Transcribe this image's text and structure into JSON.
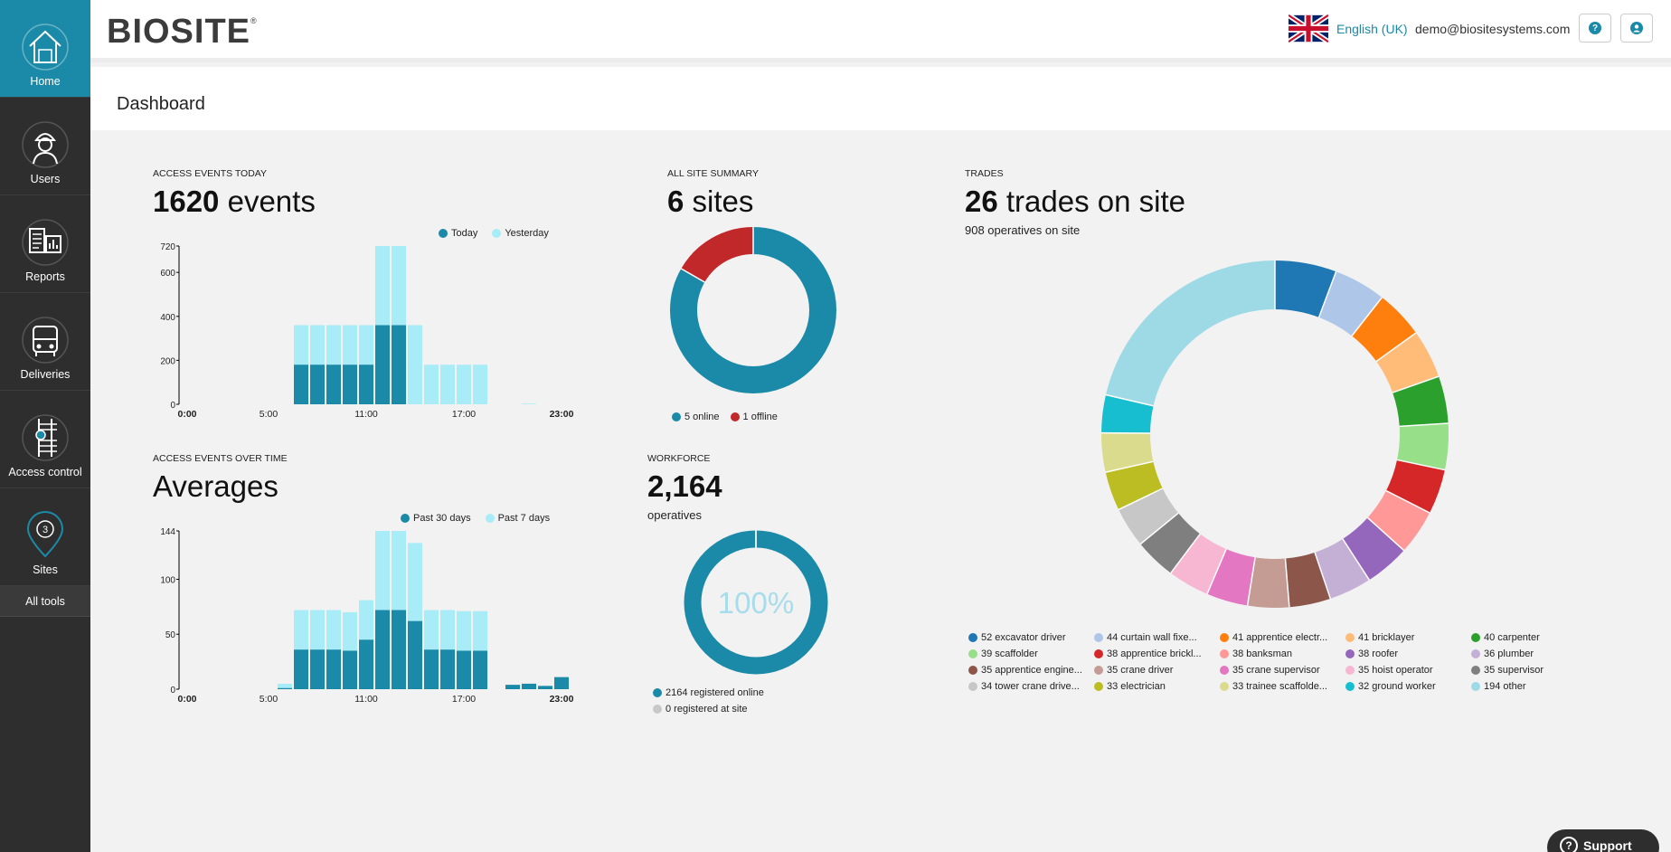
{
  "sidebar": {
    "items": [
      {
        "label": "Home",
        "icon": "home-icon"
      },
      {
        "label": "Users",
        "icon": "worker-icon"
      },
      {
        "label": "Reports",
        "icon": "reports-icon"
      },
      {
        "label": "Deliveries",
        "icon": "delivery-truck-icon"
      },
      {
        "label": "Access control",
        "icon": "turnstile-icon"
      },
      {
        "label": "Sites",
        "icon": "map-pin-icon",
        "badge": "3"
      }
    ],
    "all_tools": "All tools"
  },
  "topbar": {
    "logo": "BIOSITE",
    "logo_mark": "®",
    "language": "English (UK)",
    "email": "demo@biositesystems.com",
    "help_icon": "question-icon",
    "account_icon": "user-icon"
  },
  "page": {
    "title": "Dashboard"
  },
  "colors": {
    "accent": "#1b8aa8",
    "light": "#a8ecf7",
    "offline": "#c0282a",
    "sidebar": "#2e2e2e"
  },
  "access_today": {
    "subtitle": "ACCESS EVENTS TODAY",
    "count": "1620",
    "unit": "events",
    "legend": [
      "Today",
      "Yesterday"
    ]
  },
  "access_over_time": {
    "subtitle": "ACCESS EVENTS OVER TIME",
    "title": "Averages",
    "legend": [
      "Past 30 days",
      "Past 7 days"
    ]
  },
  "site_summary": {
    "subtitle": "ALL SITE SUMMARY",
    "count": "6",
    "unit": "sites",
    "online_label": "5 online",
    "offline_label": "1 offline"
  },
  "workforce": {
    "subtitle": "WORKFORCE",
    "count": "2,164",
    "unit": "operatives",
    "percent": "100%",
    "registered_online": "2164 registered online",
    "registered_site": "0 registered at site"
  },
  "trades": {
    "subtitle": "TRADES",
    "count": "26",
    "unit": "trades on site",
    "operatives": "908 operatives on site"
  },
  "support": {
    "label": "Support"
  },
  "chart_data": [
    {
      "type": "bar",
      "x": [
        "0:00",
        "1:00",
        "2:00",
        "3:00",
        "4:00",
        "5:00",
        "6:00",
        "7:00",
        "8:00",
        "9:00",
        "10:00",
        "11:00",
        "12:00",
        "13:00",
        "14:00",
        "15:00",
        "16:00",
        "17:00",
        "18:00",
        "19:00",
        "20:00",
        "21:00",
        "22:00",
        "23:00"
      ],
      "tick_labels": [
        "0:00",
        "5:00",
        "11:00",
        "17:00",
        "23:00"
      ],
      "series": [
        {
          "name": "Today",
          "color": "#1b8aa8",
          "values": [
            0,
            0,
            0,
            0,
            0,
            0,
            0,
            180,
            180,
            180,
            180,
            180,
            360,
            360,
            0,
            0,
            0,
            0,
            0,
            0,
            0,
            0,
            0,
            0
          ]
        },
        {
          "name": "Yesterday",
          "color": "#a8ecf7",
          "values": [
            0,
            0,
            0,
            0,
            0,
            0,
            0,
            360,
            360,
            360,
            360,
            360,
            720,
            720,
            360,
            180,
            180,
            180,
            180,
            0,
            0,
            3,
            0,
            0
          ]
        }
      ],
      "y_ticks": [
        0,
        200,
        400,
        600,
        720
      ],
      "ylim": [
        0,
        720
      ]
    },
    {
      "type": "bar",
      "x": [
        "0:00",
        "1:00",
        "2:00",
        "3:00",
        "4:00",
        "5:00",
        "6:00",
        "7:00",
        "8:00",
        "9:00",
        "10:00",
        "11:00",
        "12:00",
        "13:00",
        "14:00",
        "15:00",
        "16:00",
        "17:00",
        "18:00",
        "19:00",
        "20:00",
        "21:00",
        "22:00",
        "23:00"
      ],
      "tick_labels": [
        "0:00",
        "5:00",
        "11:00",
        "17:00",
        "23:00"
      ],
      "series": [
        {
          "name": "Past 30 days",
          "color": "#1b8aa8",
          "values": [
            0,
            0,
            0,
            0,
            0,
            0,
            1,
            36,
            36,
            36,
            35,
            45,
            72,
            72,
            62,
            36,
            36,
            35,
            35,
            0,
            4,
            5,
            3,
            11
          ]
        },
        {
          "name": "Past 7 days",
          "color": "#a8ecf7",
          "values": [
            0,
            0,
            0,
            0,
            0,
            0,
            5,
            72,
            72,
            72,
            70,
            81,
            144,
            144,
            133,
            72,
            72,
            71,
            71,
            0,
            3,
            2,
            1,
            9
          ]
        }
      ],
      "y_ticks": [
        0,
        50,
        100,
        144
      ],
      "ylim": [
        0,
        144
      ]
    },
    {
      "type": "pie",
      "labels": [
        "5 online",
        "1 offline"
      ],
      "values": [
        5,
        1
      ],
      "colors": [
        "#1b8aa8",
        "#c0282a"
      ]
    },
    {
      "type": "pie",
      "labels": [
        "2164 registered online",
        "0 registered at site"
      ],
      "values": [
        2164,
        0
      ],
      "colors": [
        "#1b8aa8",
        "#c8c8c8"
      ]
    },
    {
      "type": "pie",
      "labels": [
        "52 excavator driver",
        "44 curtain wall fixe...",
        "41 apprentice electr...",
        "41 bricklayer",
        "40 carpenter",
        "39 scaffolder",
        "38 apprentice brickl...",
        "38 banksman",
        "38 roofer",
        "36 plumber",
        "35 apprentice engine...",
        "35 crane driver",
        "35 crane supervisor",
        "35 hoist operator",
        "35 supervisor",
        "34 tower crane drive...",
        "33 electrician",
        "33 trainee scaffolde...",
        "32 ground worker",
        "194 other"
      ],
      "values": [
        52,
        44,
        41,
        41,
        40,
        39,
        38,
        38,
        38,
        36,
        35,
        35,
        35,
        35,
        35,
        34,
        33,
        33,
        32,
        194
      ],
      "colors": [
        "#1f77b4",
        "#aec7e8",
        "#ff7f0e",
        "#ffbb78",
        "#2ca02c",
        "#98df8a",
        "#d62728",
        "#ff9896",
        "#9467bd",
        "#c5b0d5",
        "#8c564b",
        "#c49c94",
        "#e377c2",
        "#f7b6d2",
        "#7f7f7f",
        "#c7c7c7",
        "#bcbd22",
        "#dbdb8d",
        "#17becf",
        "#9edae5"
      ]
    }
  ]
}
